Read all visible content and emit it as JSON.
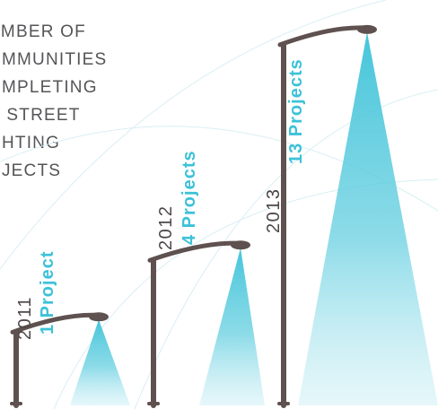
{
  "title_lines": [
    "UMBER OF",
    "OMMUNITIES",
    "OMPLETING",
    "D STREET",
    "GHTING",
    "OJECTS"
  ],
  "chart_data": {
    "type": "bar",
    "categories": [
      "2011",
      "2012",
      "2013"
    ],
    "values": [
      1,
      4,
      13
    ],
    "data_labels": [
      "1 Project",
      "4 Projects",
      "13 Projects"
    ],
    "colors": {
      "pole": "#5e514f",
      "light": "#3cc2d8",
      "text_dark": "#4d4747"
    }
  }
}
